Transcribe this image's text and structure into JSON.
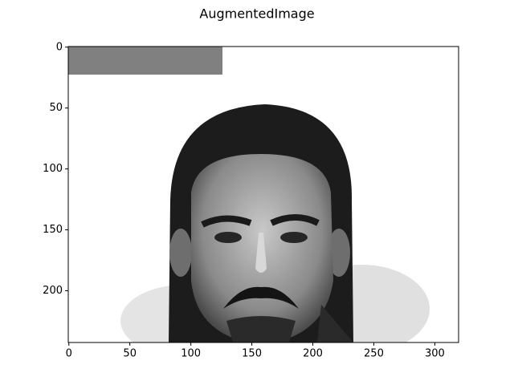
{
  "chart_data": {
    "type": "image",
    "title": "AugmentedImage",
    "xlim": [
      -0.5,
      319.5
    ],
    "ylim": [
      242.5,
      -0.5
    ],
    "xticks": [
      0,
      50,
      100,
      150,
      200,
      250,
      300
    ],
    "yticks": [
      0,
      50,
      100,
      150,
      200
    ],
    "grid": false
  }
}
